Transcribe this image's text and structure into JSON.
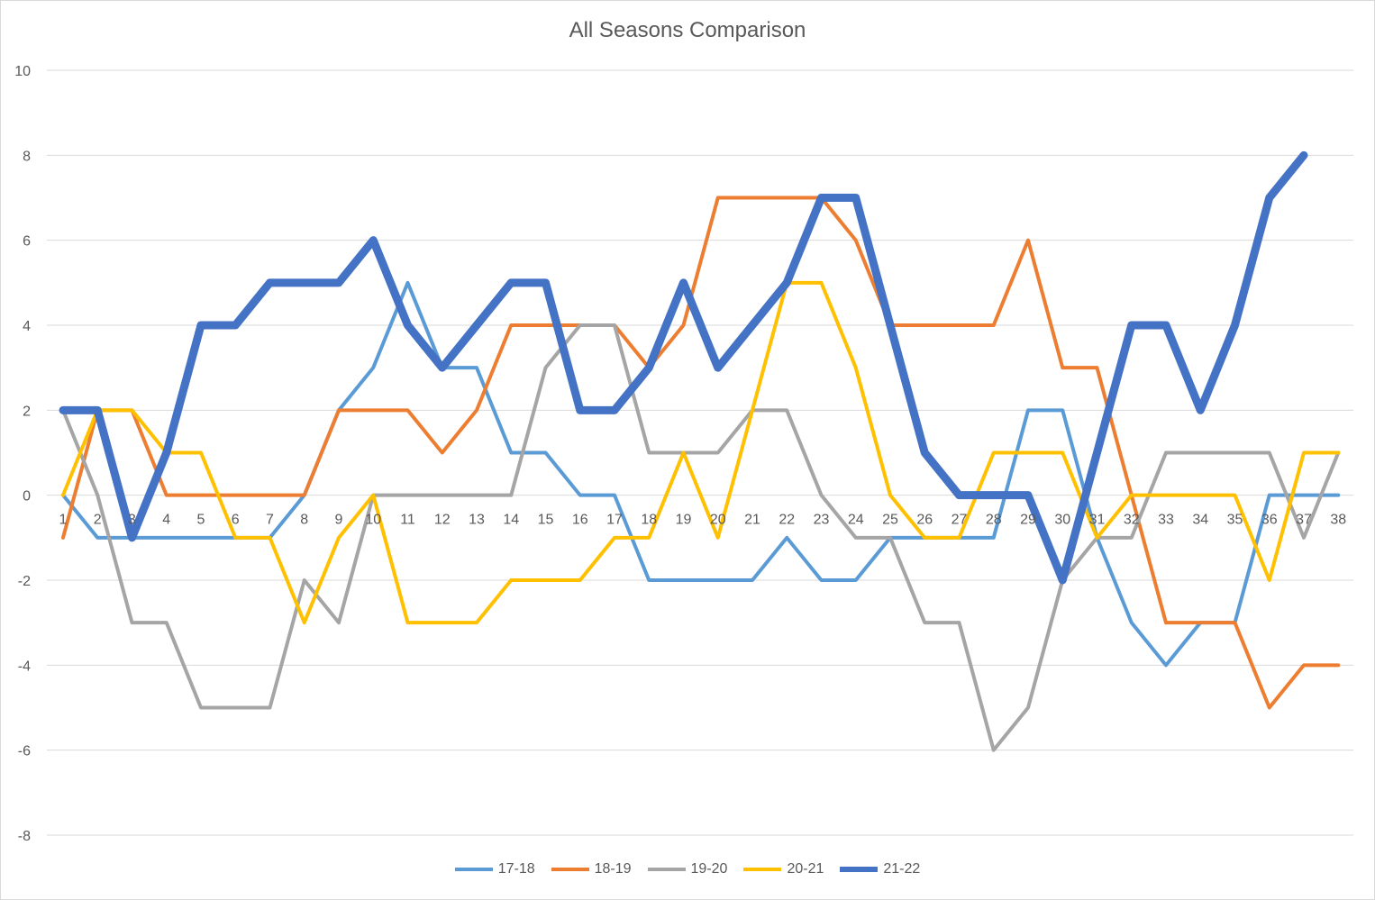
{
  "chart_data": {
    "type": "line",
    "title": "All Seasons Comparison",
    "xlabel": "",
    "ylabel": "",
    "x": [
      1,
      2,
      3,
      4,
      5,
      6,
      7,
      8,
      9,
      10,
      11,
      12,
      13,
      14,
      15,
      16,
      17,
      18,
      19,
      20,
      21,
      22,
      23,
      24,
      25,
      26,
      27,
      28,
      29,
      30,
      31,
      32,
      33,
      34,
      35,
      36,
      37,
      38
    ],
    "ylim": [
      -8,
      10
    ],
    "yticks": [
      -8,
      -6,
      -4,
      -2,
      0,
      2,
      4,
      6,
      8,
      10
    ],
    "grid": true,
    "legend": "bottom",
    "series": [
      {
        "name": "17-18",
        "color": "#5b9bd5",
        "width": 4,
        "values": [
          0,
          -1,
          -1,
          -1,
          -1,
          -1,
          -1,
          0,
          2,
          3,
          5,
          3,
          3,
          1,
          1,
          0,
          0,
          -2,
          -2,
          -2,
          -2,
          -1,
          -2,
          -2,
          -1,
          -1,
          -1,
          -1,
          2,
          2,
          -1,
          -3,
          -4,
          -3,
          -3,
          0,
          0,
          0
        ]
      },
      {
        "name": "18-19",
        "color": "#ed7d31",
        "width": 4,
        "values": [
          -1,
          2,
          2,
          0,
          0,
          0,
          0,
          0,
          2,
          2,
          2,
          1,
          2,
          4,
          4,
          4,
          4,
          3,
          4,
          7,
          7,
          7,
          7,
          6,
          4,
          4,
          4,
          4,
          6,
          3,
          3,
          0,
          -3,
          -3,
          -3,
          -5,
          -4,
          -4
        ]
      },
      {
        "name": "19-20",
        "color": "#a5a5a5",
        "width": 4,
        "values": [
          2,
          0,
          -3,
          -3,
          -5,
          -5,
          -5,
          -2,
          -3,
          0,
          0,
          0,
          0,
          0,
          3,
          4,
          4,
          1,
          1,
          1,
          2,
          2,
          0,
          -1,
          -1,
          -3,
          -3,
          -6,
          -5,
          -2,
          -1,
          -1,
          1,
          1,
          1,
          1,
          -1,
          1
        ]
      },
      {
        "name": "20-21",
        "color": "#ffc000",
        "width": 4,
        "values": [
          0,
          2,
          2,
          1,
          1,
          -1,
          -1,
          -3,
          -1,
          0,
          -3,
          -3,
          -3,
          -2,
          -2,
          -2,
          -1,
          -1,
          1,
          -1,
          2,
          5,
          5,
          3,
          0,
          -1,
          -1,
          1,
          1,
          1,
          -1,
          0,
          0,
          0,
          0,
          -2,
          1,
          1
        ]
      },
      {
        "name": "21-22",
        "color": "#4472c4",
        "width": 9,
        "values": [
          2,
          2,
          -1,
          1,
          4,
          4,
          5,
          5,
          5,
          6,
          4,
          3,
          4,
          5,
          5,
          2,
          2,
          3,
          5,
          3,
          4,
          5,
          7,
          7,
          4,
          1,
          0,
          0,
          0,
          -2,
          1,
          4,
          4,
          2,
          4,
          7,
          8,
          null
        ]
      }
    ]
  }
}
